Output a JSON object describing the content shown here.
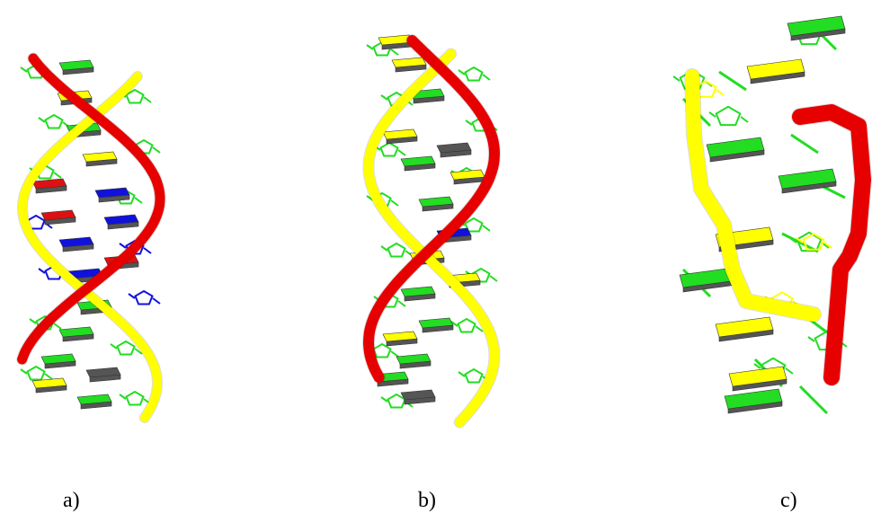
{
  "figure": {
    "panels": [
      {
        "label": "a)"
      },
      {
        "label": "b)"
      },
      {
        "label": "c)"
      }
    ]
  },
  "colors": {
    "strand_red": "#e60000",
    "strand_yellow": "#ffff00",
    "base_green": "#22dd22",
    "base_blue": "#1111dd",
    "base_red": "#dd1111",
    "base_side": "#555555"
  }
}
